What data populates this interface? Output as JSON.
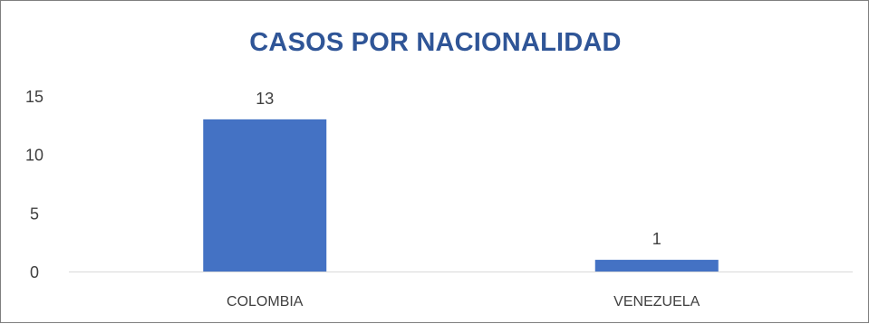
{
  "chart_data": {
    "type": "bar",
    "title": "CASOS POR NACIONALIDAD",
    "categories": [
      "COLOMBIA",
      "VENEZUELA"
    ],
    "values": [
      13,
      1
    ],
    "data_labels": [
      "13",
      "1"
    ],
    "xlabel": "",
    "ylabel": "",
    "ylim": [
      0,
      15
    ],
    "yticks": [
      0,
      5,
      10,
      15
    ],
    "ytick_labels": [
      "0",
      "5",
      "10",
      "15"
    ],
    "grid": false,
    "legend": "none",
    "colors": {
      "bar": "#4472c4",
      "title": "#2f5597",
      "text": "#404040",
      "axis": "#d9d9d9"
    }
  }
}
